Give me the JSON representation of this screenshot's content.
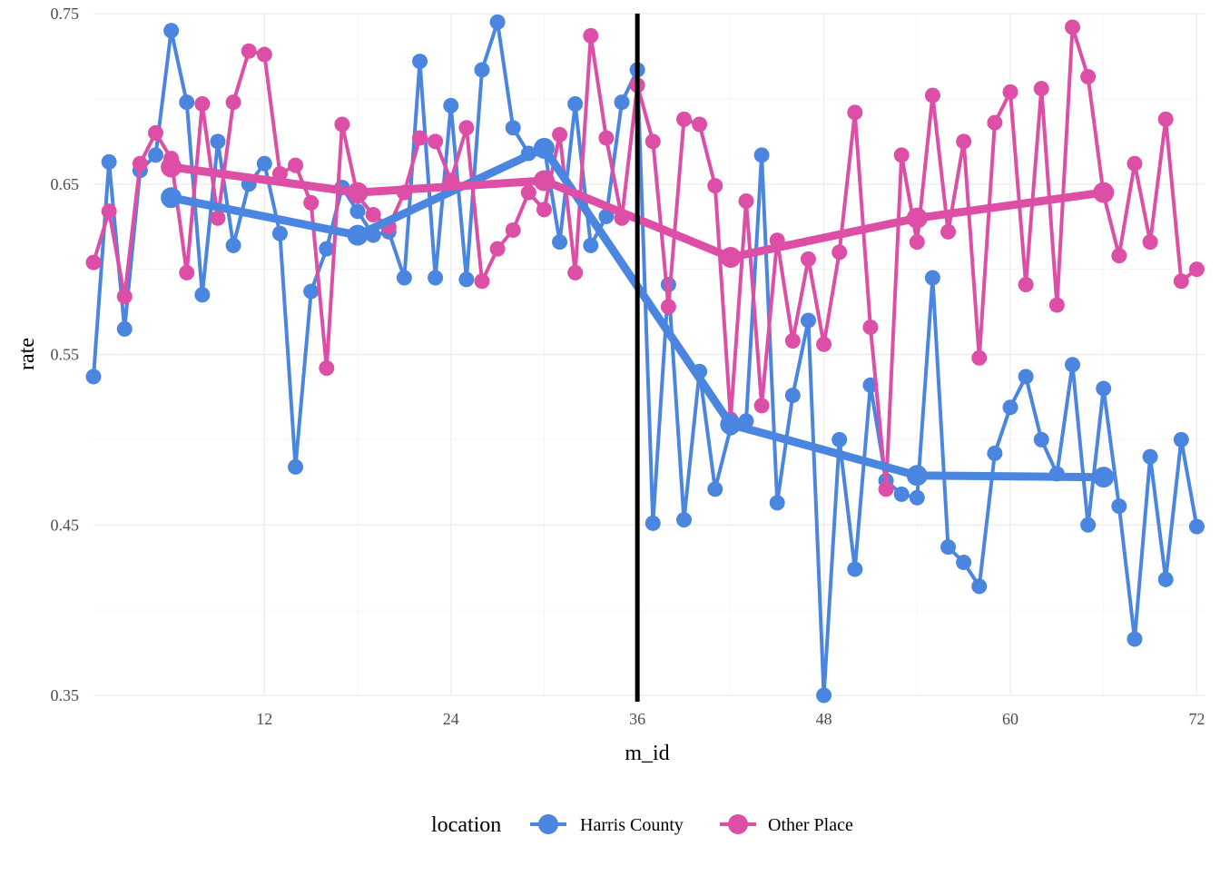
{
  "chart_data": {
    "type": "line",
    "title": "",
    "xlabel": "m_id",
    "ylabel": "rate",
    "xlim": [
      1,
      72.5
    ],
    "ylim": [
      0.35,
      0.75
    ],
    "xticks": [
      12,
      24,
      36,
      48,
      60,
      72
    ],
    "yticks": [
      0.35,
      0.45,
      0.55,
      0.65,
      0.75
    ],
    "ytick_labels": [
      "0.35",
      "0.45",
      "0.55",
      "0.65",
      "0.75"
    ],
    "grid": true,
    "vline_x": 36,
    "legend": {
      "title": "location",
      "position": "bottom",
      "entries": [
        "Harris County",
        "Other Place"
      ]
    },
    "series": [
      {
        "name": "Harris County",
        "color": "#4a86e0",
        "kind": "monthly",
        "x": [
          1,
          2,
          3,
          4,
          5,
          6,
          7,
          8,
          9,
          10,
          11,
          12,
          13,
          14,
          15,
          16,
          17,
          18,
          19,
          20,
          21,
          22,
          23,
          24,
          25,
          26,
          27,
          28,
          29,
          30,
          31,
          32,
          33,
          34,
          35,
          36,
          37,
          38,
          39,
          40,
          41,
          42,
          43,
          44,
          45,
          46,
          47,
          48,
          49,
          50,
          51,
          52,
          53,
          54,
          55,
          56,
          57,
          58,
          59,
          60,
          61,
          62,
          63,
          64,
          65,
          66,
          67,
          68,
          69,
          70,
          71,
          72
        ],
        "y": [
          0.537,
          0.663,
          0.565,
          0.658,
          0.667,
          0.74,
          0.698,
          0.585,
          0.675,
          0.614,
          0.65,
          0.662,
          0.621,
          0.484,
          0.587,
          0.612,
          0.648,
          0.634,
          0.62,
          0.622,
          0.595,
          0.722,
          0.595,
          0.696,
          0.594,
          0.717,
          0.745,
          0.683,
          0.668,
          0.672,
          0.616,
          0.697,
          0.614,
          0.631,
          0.698,
          0.717,
          0.451,
          0.591,
          0.453,
          0.54,
          0.471,
          0.507,
          0.511,
          0.667,
          0.463,
          0.526,
          0.57,
          0.35,
          0.5,
          0.424,
          0.532,
          0.476,
          0.468,
          0.466,
          0.595,
          0.437,
          0.428,
          0.414,
          0.492,
          0.519,
          0.537,
          0.5,
          0.48,
          0.544,
          0.45,
          0.53,
          0.461,
          0.383,
          0.49,
          0.418,
          0.5,
          0.449
        ]
      },
      {
        "name": "Other Place",
        "color": "#dd4fa6",
        "kind": "monthly",
        "x": [
          1,
          2,
          3,
          4,
          5,
          6,
          7,
          8,
          9,
          10,
          11,
          12,
          13,
          14,
          15,
          16,
          17,
          18,
          19,
          20,
          21,
          22,
          23,
          24,
          25,
          26,
          27,
          28,
          29,
          30,
          31,
          32,
          33,
          34,
          35,
          36,
          37,
          38,
          39,
          40,
          41,
          42,
          43,
          44,
          45,
          46,
          47,
          48,
          49,
          50,
          51,
          52,
          53,
          54,
          55,
          56,
          57,
          58,
          59,
          60,
          61,
          62,
          63,
          64,
          65,
          66,
          67,
          68,
          69,
          70,
          71,
          72
        ],
        "y": [
          0.604,
          0.634,
          0.584,
          0.662,
          0.68,
          0.665,
          0.598,
          0.697,
          0.63,
          0.698,
          0.728,
          0.726,
          0.656,
          0.661,
          0.639,
          0.542,
          0.685,
          0.643,
          0.632,
          0.625,
          0.645,
          0.677,
          0.675,
          0.652,
          0.683,
          0.593,
          0.612,
          0.623,
          0.645,
          0.635,
          0.679,
          0.598,
          0.737,
          0.677,
          0.63,
          0.708,
          0.675,
          0.578,
          0.688,
          0.685,
          0.649,
          0.512,
          0.64,
          0.52,
          0.617,
          0.558,
          0.606,
          0.556,
          0.61,
          0.692,
          0.566,
          0.471,
          0.667,
          0.616,
          0.702,
          0.622,
          0.675,
          0.548,
          0.686,
          0.704,
          0.591,
          0.706,
          0.579,
          0.742,
          0.713,
          0.644,
          0.608,
          0.662,
          0.616,
          0.688,
          0.593,
          0.6
        ]
      },
      {
        "name": "Harris County",
        "color": "#4a86e0",
        "kind": "smoothed",
        "x": [
          6,
          18,
          30,
          42,
          54,
          66
        ],
        "y": [
          0.642,
          0.62,
          0.671,
          0.509,
          0.479,
          0.478
        ]
      },
      {
        "name": "Other Place",
        "color": "#dd4fa6",
        "kind": "smoothed",
        "x": [
          6,
          18,
          30,
          42,
          54,
          66
        ],
        "y": [
          0.66,
          0.645,
          0.652,
          0.607,
          0.63,
          0.645
        ]
      }
    ]
  }
}
